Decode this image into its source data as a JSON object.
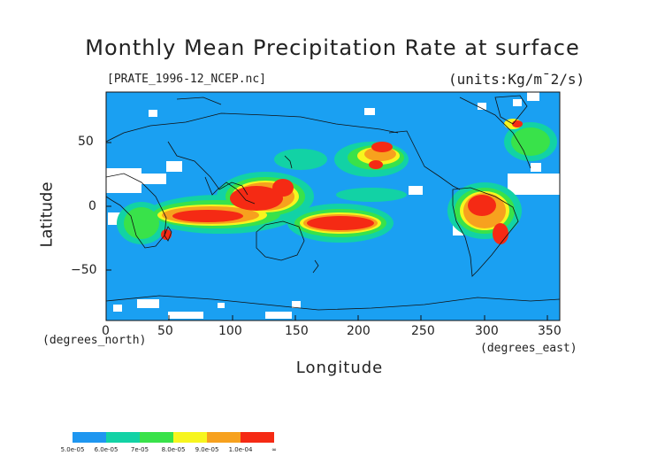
{
  "title": "Monthly Mean Precipitation Rate at surface",
  "source_file": "[PRATE_1996-12_NCEP.nc]",
  "units": "(units:Kg/m¯2/s)",
  "y_axis": {
    "label": "Latitude",
    "unit": "(degrees_north)",
    "ticks": [
      "50",
      "0",
      "−50"
    ]
  },
  "x_axis": {
    "label": "Longitude",
    "unit": "(degrees_east)",
    "ticks": [
      "0",
      "50",
      "100",
      "150",
      "200",
      "250",
      "300",
      "350"
    ]
  },
  "colors": {
    "ocean_background": "#1aa0f2",
    "coast": "#111111",
    "missing": "#ffffff"
  },
  "colorbar": {
    "labels": [
      "5.0e-05",
      "6.0e-05",
      "7e-05",
      "8.0e-05",
      "9.0e-05",
      "1.0e-04",
      "∞"
    ],
    "colors": [
      "#1e96f0",
      "#12d2a5",
      "#39e24a",
      "#f7f51e",
      "#f7a11e",
      "#f52a14"
    ]
  },
  "chart_data": {
    "type": "heatmap",
    "title": "Monthly Mean Precipitation Rate at surface",
    "xlabel": "Longitude",
    "ylabel": "Latitude",
    "xlim": [
      0,
      360
    ],
    "ylim": [
      -90,
      90
    ],
    "x_ticks": [
      0,
      50,
      100,
      150,
      200,
      250,
      300,
      350
    ],
    "y_ticks": [
      -50,
      0,
      50
    ],
    "levels": [
      5e-05,
      6e-05,
      7e-05,
      8e-05,
      9e-05,
      0.0001
    ],
    "high_precip_regions": [
      {
        "lon": [
          55,
          110
        ],
        "lat": [
          -18,
          -8
        ],
        "level": 0.0001
      },
      {
        "lon": [
          100,
          150
        ],
        "lat": [
          -10,
          10
        ],
        "level": 0.0001
      },
      {
        "lon": [
          150,
          220
        ],
        "lat": [
          -18,
          -5
        ],
        "level": 0.0001
      },
      {
        "lon": [
          200,
          225
        ],
        "lat": [
          35,
          50
        ],
        "level": 0.0001
      },
      {
        "lon": [
          280,
          320
        ],
        "lat": [
          -15,
          5
        ],
        "level": 0.0001
      },
      {
        "lon": [
          305,
          325
        ],
        "lat": [
          -30,
          -20
        ],
        "level": 0.0001
      },
      {
        "lon": [
          15,
          40
        ],
        "lat": [
          -25,
          -5
        ],
        "level": 8e-05
      },
      {
        "lon": [
          315,
          345
        ],
        "lat": [
          35,
          60
        ],
        "level": 8e-05
      }
    ]
  }
}
